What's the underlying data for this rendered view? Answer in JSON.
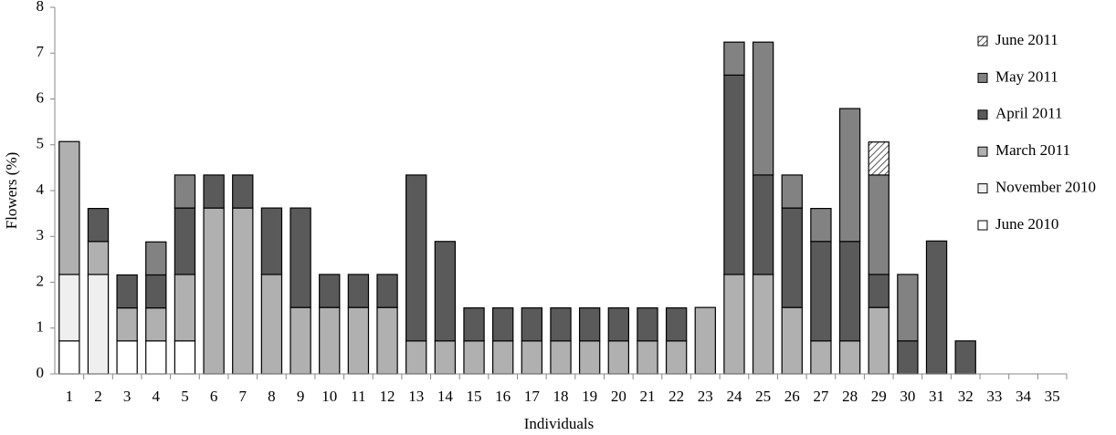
{
  "chart_data": {
    "type": "stacked_bar",
    "xlabel": "Individuals",
    "ylabel": "Flowers (%)",
    "categories": [
      "1",
      "2",
      "3",
      "4",
      "5",
      "6",
      "7",
      "8",
      "9",
      "10",
      "11",
      "12",
      "13",
      "14",
      "15",
      "16",
      "17",
      "18",
      "19",
      "20",
      "21",
      "22",
      "23",
      "24",
      "25",
      "26",
      "27",
      "28",
      "29",
      "30",
      "31",
      "32",
      "33",
      "34",
      "35"
    ],
    "series": [
      {
        "name": "June 2010",
        "color": "#ffffff",
        "values": [
          0.72,
          0,
          0.72,
          0.72,
          0.72,
          0,
          0,
          0,
          0,
          0,
          0,
          0,
          0,
          0,
          0,
          0,
          0,
          0,
          0,
          0,
          0,
          0,
          0,
          0,
          0,
          0,
          0,
          0,
          0,
          0,
          0,
          0,
          0,
          0,
          0
        ]
      },
      {
        "name": "November 2010",
        "color": "#efefef",
        "values": [
          1.45,
          2.17,
          0,
          0,
          0,
          0,
          0,
          0,
          0,
          0,
          0,
          0,
          0,
          0,
          0,
          0,
          0,
          0,
          0,
          0,
          0,
          0,
          0,
          0,
          0,
          0,
          0,
          0,
          0,
          0,
          0,
          0,
          0,
          0,
          0
        ]
      },
      {
        "name": "March 2011",
        "color": "#b0b0b0",
        "values": [
          2.9,
          0.72,
          0.72,
          0.72,
          1.45,
          3.62,
          3.62,
          2.17,
          1.45,
          1.45,
          1.45,
          1.45,
          0.72,
          0.72,
          0.72,
          0.72,
          0.72,
          0.72,
          0.72,
          0.72,
          0.72,
          0.72,
          1.45,
          2.17,
          2.17,
          1.45,
          0.72,
          0.72,
          1.45,
          0,
          0,
          0,
          0,
          0,
          0
        ]
      },
      {
        "name": "April 2011",
        "color": "#5a5a5a",
        "values": [
          0,
          0.72,
          0.72,
          0.72,
          1.45,
          0.72,
          0.72,
          1.45,
          2.17,
          0.72,
          0.72,
          0.72,
          3.62,
          2.17,
          0.72,
          0.72,
          0.72,
          0.72,
          0.72,
          0.72,
          0.72,
          0.72,
          0,
          4.35,
          2.17,
          2.17,
          2.17,
          2.17,
          0.72,
          0.72,
          2.9,
          0.72,
          0,
          0,
          0
        ]
      },
      {
        "name": "May 2011",
        "color": "#828282",
        "values": [
          0,
          0,
          0,
          0.72,
          0.72,
          0,
          0,
          0,
          0,
          0,
          0,
          0,
          0,
          0,
          0,
          0,
          0,
          0,
          0,
          0,
          0,
          0,
          0,
          0.72,
          2.9,
          0.72,
          0.72,
          2.9,
          2.17,
          1.45,
          0,
          0,
          0,
          0,
          0
        ]
      },
      {
        "name": "June 2011",
        "color": "#c8c8c8",
        "pattern": "hatch",
        "values": [
          0,
          0,
          0,
          0,
          0,
          0,
          0,
          0,
          0,
          0,
          0,
          0,
          0,
          0,
          0,
          0,
          0,
          0,
          0,
          0,
          0,
          0,
          0,
          0,
          0,
          0,
          0,
          0,
          0.72,
          0,
          0,
          0,
          0,
          0,
          0
        ]
      }
    ],
    "ylim": [
      0,
      8
    ],
    "yticks": [
      0,
      1,
      2,
      3,
      4,
      5,
      6,
      7,
      8
    ],
    "grid": false,
    "legend": "right"
  }
}
